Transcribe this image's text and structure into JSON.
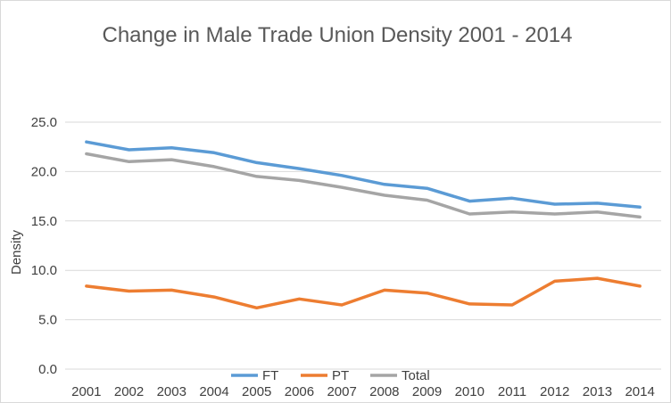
{
  "chart_data": {
    "type": "line",
    "title": "Change in Male Trade Union Density 2001 - 2014",
    "xlabel": "",
    "ylabel": "Density",
    "categories": [
      "2001",
      "2002",
      "2003",
      "2004",
      "2005",
      "2006",
      "2007",
      "2008",
      "2009",
      "2010",
      "2011",
      "2012",
      "2013",
      "2014"
    ],
    "ylim": [
      0,
      25
    ],
    "yticks": [
      0,
      5,
      10,
      15,
      20,
      25
    ],
    "ytick_labels": [
      "0.0",
      "5.0",
      "10.0",
      "15.0",
      "20.0",
      "25.0"
    ],
    "grid": true,
    "legend_position": "bottom",
    "series": [
      {
        "name": "FT",
        "color": "#5b9bd5",
        "values": [
          23.0,
          22.2,
          22.4,
          21.9,
          20.9,
          20.3,
          19.6,
          18.7,
          18.3,
          17.0,
          17.3,
          16.7,
          16.8,
          16.4
        ]
      },
      {
        "name": "PT",
        "color": "#ed7d31",
        "values": [
          8.4,
          7.9,
          8.0,
          7.3,
          6.2,
          7.1,
          6.5,
          8.0,
          7.7,
          6.6,
          6.5,
          8.9,
          9.2,
          8.4
        ]
      },
      {
        "name": "Total",
        "color": "#a5a5a5",
        "values": [
          21.8,
          21.0,
          21.2,
          20.5,
          19.5,
          19.1,
          18.4,
          17.6,
          17.1,
          15.7,
          15.9,
          15.7,
          15.9,
          15.4
        ]
      }
    ]
  }
}
